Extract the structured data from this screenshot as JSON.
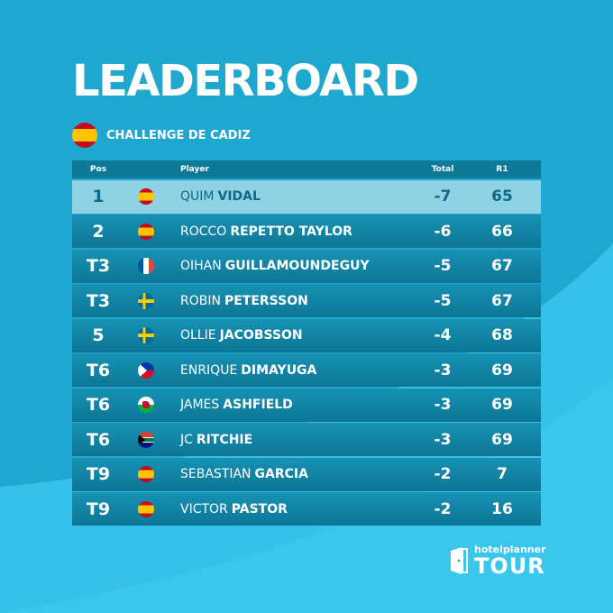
{
  "title": "LEADERBOARD",
  "event": {
    "name": "CHALLENGE DE CADIZ",
    "flag_icon": "spain-flag-icon"
  },
  "columns": {
    "pos": "Pos",
    "player": "Player",
    "total": "Total",
    "r1": "R1"
  },
  "rows": [
    {
      "pos": "1",
      "first": "QUIM",
      "last": "VIDAL",
      "flag": "ES",
      "total": "-7",
      "r1": "65",
      "leader": true
    },
    {
      "pos": "2",
      "first": "ROCCO",
      "last": "REPETTO TAYLOR",
      "flag": "ES",
      "total": "-6",
      "r1": "66"
    },
    {
      "pos": "T3",
      "first": "OIHAN",
      "last": "GUILLAMOUNDEGUY",
      "flag": "FR",
      "total": "-5",
      "r1": "67"
    },
    {
      "pos": "T3",
      "first": "ROBIN",
      "last": "PETERSSON",
      "flag": "SE",
      "total": "-5",
      "r1": "67"
    },
    {
      "pos": "5",
      "first": "OLLIE",
      "last": "JACOBSSON",
      "flag": "SE",
      "total": "-4",
      "r1": "68"
    },
    {
      "pos": "T6",
      "first": "ENRIQUE",
      "last": "DIMAYUGA",
      "flag": "PH",
      "total": "-3",
      "r1": "69"
    },
    {
      "pos": "T6",
      "first": "JAMES",
      "last": "ASHFIELD",
      "flag": "WLS",
      "total": "-3",
      "r1": "69"
    },
    {
      "pos": "T6",
      "first": "JC",
      "last": "RITCHIE",
      "flag": "ZA",
      "total": "-3",
      "r1": "69"
    },
    {
      "pos": "T9",
      "first": "SEBASTIAN",
      "last": "GARCIA",
      "flag": "ES",
      "total": "-2",
      "r1": "7"
    },
    {
      "pos": "T9",
      "first": "VICTOR",
      "last": "PASTOR",
      "flag": "ES",
      "total": "-2",
      "r1": "16"
    }
  ],
  "logo": {
    "line1": "hotelplanner",
    "line2": "TOUR",
    "icon": "door-icon"
  },
  "colors": {
    "background": "#1fa8cf",
    "header": "#0f7a97",
    "row": "#1286a8",
    "leader_row": "#8fd2e4",
    "leader_text": "#0b6a88",
    "wave": "#3cc6ea"
  }
}
